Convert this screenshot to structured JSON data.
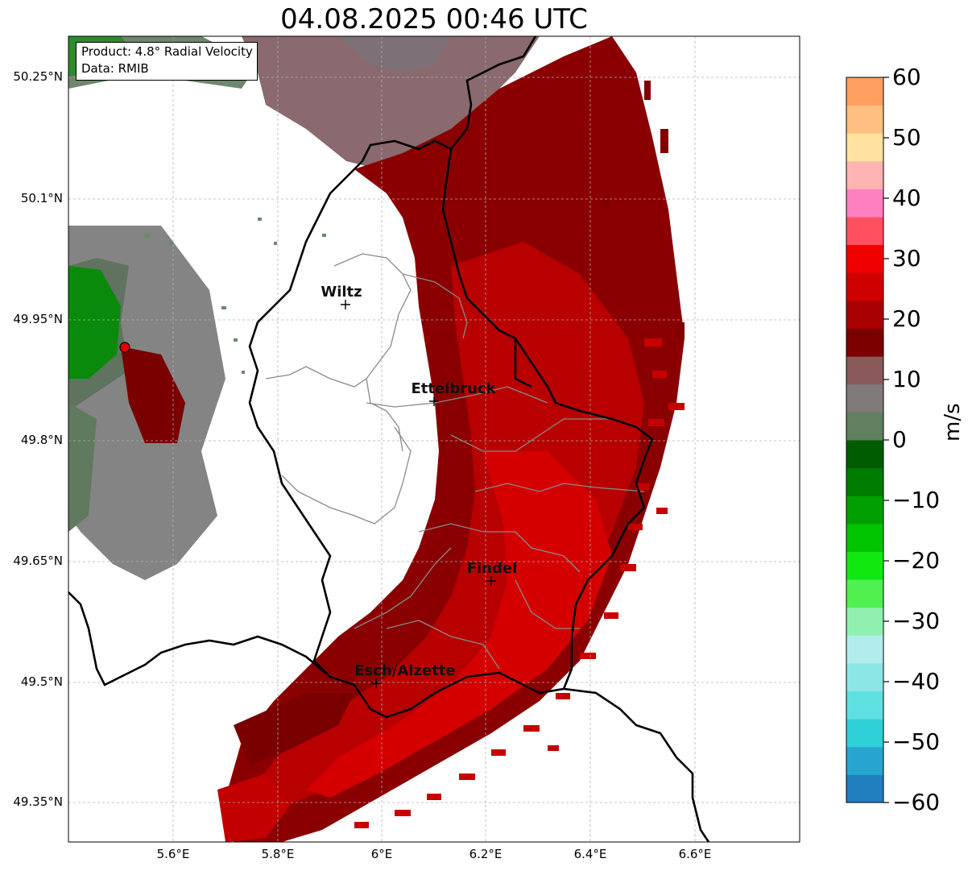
{
  "title": "04.08.2025 00:46 UTC",
  "info": {
    "product": "Product: 4.8° Radial Velocity",
    "source": "Data: RMIB"
  },
  "axes": {
    "lon_ticks": [
      "5.6°E",
      "5.8°E",
      "6°E",
      "6.2°E",
      "6.4°E",
      "6.6°E"
    ],
    "lat_ticks": [
      "50.25°N",
      "50.1°N",
      "49.95°N",
      "49.8°N",
      "49.65°N",
      "49.35°N",
      "49.5°N"
    ]
  },
  "cities": [
    "Wiltz",
    "Ettelbruck",
    "Findel",
    "Esch/Alzette"
  ],
  "colorbar": {
    "label": "m/s",
    "ticks": [
      "60",
      "50",
      "40",
      "30",
      "20",
      "10",
      "0",
      "−10",
      "−20",
      "−30",
      "−40",
      "−50",
      "−60"
    ],
    "min": -60,
    "max": 60,
    "colors": [
      "#1f7fbf",
      "#26a6cf",
      "#2fd0d8",
      "#5fe0e0",
      "#8de6e6",
      "#b3ecec",
      "#90f0b0",
      "#50f050",
      "#10e810",
      "#00c400",
      "#00a000",
      "#007c00",
      "#005c00",
      "#608060",
      "#807a7a",
      "#8a5a5a",
      "#7c0000",
      "#a80000",
      "#d00000",
      "#f00000",
      "#ff5060",
      "#ff80c0",
      "#ffb4b4",
      "#ffe2a0",
      "#ffc080",
      "#ffa060"
    ]
  },
  "colors": {
    "outbound_strong": "#e00000",
    "outbound_medium": "#b00000",
    "outbound_dark": "#7a0000",
    "near_zero": "#8a6868",
    "inbound": "#009000",
    "radar_site": "#e00000"
  }
}
